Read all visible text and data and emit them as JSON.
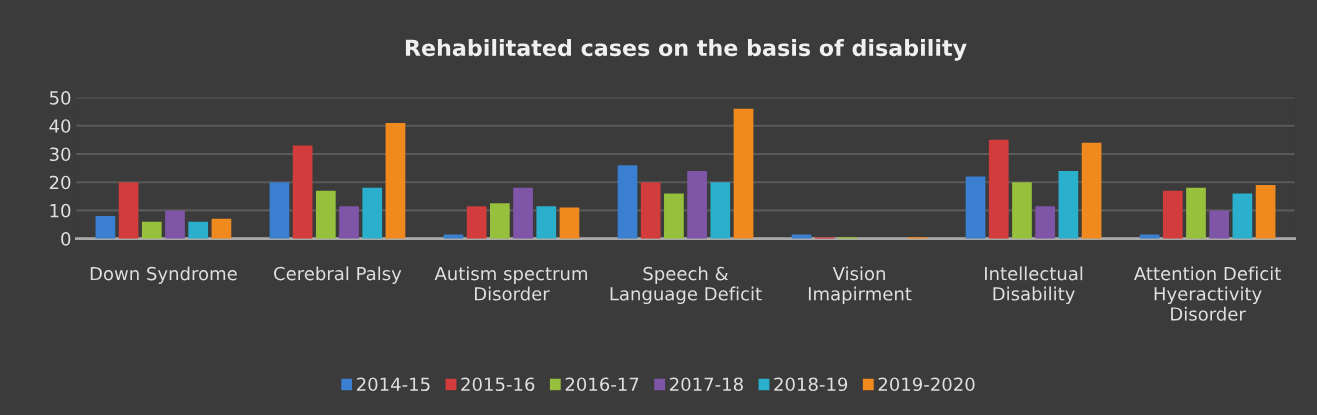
{
  "chart_data": {
    "type": "bar",
    "title": "Rehabilitated cases on the basis of disability",
    "categories": [
      "Down Syndrome",
      "Cerebral Palsy",
      "Autism spectrum\nDisorder",
      "Speech &\nLanguage Deficit",
      "Vision\nImapirment",
      "Intellectual\nDisability",
      "Attention Deficit\nHyeractivity\nDisorder"
    ],
    "series": [
      {
        "name": "2014-15",
        "color": "#3a7fd0",
        "values": [
          8,
          20,
          1.5,
          26,
          1.5,
          22,
          1.5
        ]
      },
      {
        "name": "2015-16",
        "color": "#d23c3c",
        "values": [
          20,
          33,
          11.5,
          20,
          0.5,
          35,
          17
        ]
      },
      {
        "name": "2016-17",
        "color": "#97c03c",
        "values": [
          6,
          17,
          12.5,
          16,
          0.5,
          20,
          18
        ]
      },
      {
        "name": "2017-18",
        "color": "#7f55a8",
        "values": [
          10,
          11.5,
          18,
          24,
          0,
          11.5,
          10
        ]
      },
      {
        "name": "2018-19",
        "color": "#2ab0cc",
        "values": [
          6,
          18,
          11.5,
          20,
          0,
          24,
          16
        ]
      },
      {
        "name": "2019-2020",
        "color": "#f08a1e",
        "values": [
          7,
          41,
          11,
          46,
          0.5,
          34,
          19
        ]
      }
    ],
    "ylim": [
      0,
      50
    ],
    "yticks": [
      0,
      10,
      20,
      30,
      40,
      50
    ],
    "grid": "y",
    "legend": "bottom"
  }
}
